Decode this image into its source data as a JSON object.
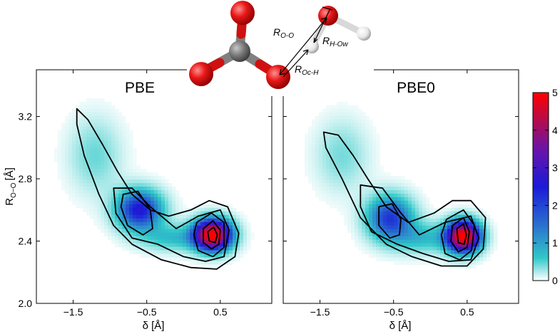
{
  "chart_data": [
    {
      "type": "heatmap",
      "title": "PBE",
      "xlabel": "δ [Å]",
      "ylabel_main": "R",
      "ylabel_sub": "O−O",
      "ylabel_unit": "[Å]",
      "xlim": [
        -2.0,
        1.2
      ],
      "ylim": [
        2.0,
        3.5
      ],
      "xticks": [
        -1.5,
        -0.5,
        0.5
      ],
      "xtick_labels": [
        "−1.5",
        "−0.5",
        "0.5"
      ],
      "yticks": [
        2.0,
        2.4,
        2.8,
        3.2
      ],
      "ytick_labels": [
        "2.0",
        "2.4",
        "2.8",
        "3.2"
      ],
      "density_peaks": [
        {
          "x": 0.4,
          "y": 2.44,
          "sx": 0.18,
          "sy": 0.07,
          "amplitude": 5.0
        },
        {
          "x": -0.6,
          "y": 2.6,
          "sx": 0.22,
          "sy": 0.09,
          "amplitude": 2.6
        },
        {
          "x": -0.15,
          "y": 2.42,
          "sx": 0.3,
          "sy": 0.06,
          "amplitude": 0.9
        },
        {
          "x": -1.2,
          "y": 2.95,
          "sx": 0.25,
          "sy": 0.17,
          "amplitude": 0.6
        }
      ],
      "contours": [
        [
          [
            -1.45,
            3.25
          ],
          [
            -1.3,
            3.18
          ],
          [
            -1.1,
            3.02
          ],
          [
            -0.9,
            2.85
          ],
          [
            -0.7,
            2.7
          ],
          [
            -0.45,
            2.6
          ],
          [
            -0.2,
            2.56
          ],
          [
            0.1,
            2.6
          ],
          [
            0.35,
            2.66
          ],
          [
            0.6,
            2.62
          ],
          [
            0.75,
            2.45
          ],
          [
            0.7,
            2.3
          ],
          [
            0.45,
            2.22
          ],
          [
            0.1,
            2.23
          ],
          [
            -0.3,
            2.28
          ],
          [
            -0.7,
            2.38
          ],
          [
            -0.95,
            2.5
          ],
          [
            -1.15,
            2.7
          ],
          [
            -1.35,
            2.95
          ],
          [
            -1.45,
            3.15
          ]
        ],
        [
          [
            -0.95,
            2.74
          ],
          [
            -0.7,
            2.74
          ],
          [
            -0.45,
            2.62
          ],
          [
            -0.1,
            2.48
          ],
          [
            0.2,
            2.56
          ],
          [
            0.5,
            2.6
          ],
          [
            0.62,
            2.47
          ],
          [
            0.55,
            2.3
          ],
          [
            0.3,
            2.27
          ],
          [
            0.0,
            2.3
          ],
          [
            -0.35,
            2.38
          ],
          [
            -0.7,
            2.42
          ],
          [
            -0.92,
            2.58
          ]
        ],
        [
          [
            -0.82,
            2.7
          ],
          [
            -0.62,
            2.72
          ],
          [
            -0.45,
            2.6
          ],
          [
            -0.42,
            2.48
          ],
          [
            -0.55,
            2.44
          ],
          [
            -0.76,
            2.5
          ],
          [
            -0.85,
            2.62
          ]
        ],
        [
          [
            0.18,
            2.52
          ],
          [
            0.38,
            2.58
          ],
          [
            0.55,
            2.52
          ],
          [
            0.55,
            2.36
          ],
          [
            0.4,
            2.3
          ],
          [
            0.2,
            2.34
          ],
          [
            0.14,
            2.44
          ]
        ],
        [
          [
            0.27,
            2.48
          ],
          [
            0.4,
            2.53
          ],
          [
            0.5,
            2.47
          ],
          [
            0.48,
            2.38
          ],
          [
            0.38,
            2.35
          ],
          [
            0.27,
            2.39
          ]
        ],
        [
          [
            0.33,
            2.46
          ],
          [
            0.41,
            2.49
          ],
          [
            0.46,
            2.44
          ],
          [
            0.43,
            2.39
          ],
          [
            0.35,
            2.4
          ]
        ]
      ]
    },
    {
      "type": "heatmap",
      "title": "PBE0",
      "xlabel": "δ [Å]",
      "xlim": [
        -2.0,
        1.2
      ],
      "ylim": [
        2.0,
        3.5
      ],
      "xticks": [
        -1.5,
        -0.5,
        0.5
      ],
      "xtick_labels": [
        "−1.5",
        "−0.5",
        "0.5"
      ],
      "density_peaks": [
        {
          "x": 0.45,
          "y": 2.43,
          "sx": 0.16,
          "sy": 0.07,
          "amplitude": 5.0
        },
        {
          "x": -0.55,
          "y": 2.55,
          "sx": 0.22,
          "sy": 0.1,
          "amplitude": 2.2
        },
        {
          "x": -0.1,
          "y": 2.42,
          "sx": 0.3,
          "sy": 0.07,
          "amplitude": 0.9
        },
        {
          "x": -1.2,
          "y": 2.95,
          "sx": 0.25,
          "sy": 0.16,
          "amplitude": 0.55
        }
      ],
      "contours": [
        [
          [
            -1.45,
            3.1
          ],
          [
            -1.25,
            3.08
          ],
          [
            -1.05,
            2.95
          ],
          [
            -0.85,
            2.8
          ],
          [
            -0.6,
            2.62
          ],
          [
            -0.3,
            2.52
          ],
          [
            0.05,
            2.58
          ],
          [
            0.3,
            2.66
          ],
          [
            0.55,
            2.66
          ],
          [
            0.75,
            2.55
          ],
          [
            0.72,
            2.35
          ],
          [
            0.5,
            2.24
          ],
          [
            0.15,
            2.24
          ],
          [
            -0.25,
            2.3
          ],
          [
            -0.6,
            2.38
          ],
          [
            -0.95,
            2.55
          ],
          [
            -1.2,
            2.8
          ],
          [
            -1.42,
            3.0
          ]
        ],
        [
          [
            -0.95,
            2.76
          ],
          [
            -0.65,
            2.74
          ],
          [
            -0.4,
            2.58
          ],
          [
            -0.15,
            2.44
          ],
          [
            0.2,
            2.52
          ],
          [
            0.55,
            2.56
          ],
          [
            0.66,
            2.42
          ],
          [
            0.55,
            2.28
          ],
          [
            0.25,
            2.27
          ],
          [
            -0.1,
            2.32
          ],
          [
            -0.45,
            2.38
          ],
          [
            -0.8,
            2.46
          ],
          [
            -0.95,
            2.62
          ]
        ],
        [
          [
            -0.7,
            2.62
          ],
          [
            -0.52,
            2.64
          ],
          [
            -0.4,
            2.54
          ],
          [
            -0.42,
            2.44
          ],
          [
            -0.55,
            2.42
          ],
          [
            -0.7,
            2.5
          ]
        ],
        [
          [
            0.22,
            2.54
          ],
          [
            0.45,
            2.6
          ],
          [
            0.6,
            2.5
          ],
          [
            0.56,
            2.34
          ],
          [
            0.4,
            2.28
          ],
          [
            0.2,
            2.32
          ],
          [
            0.15,
            2.44
          ]
        ],
        [
          [
            0.3,
            2.5
          ],
          [
            0.45,
            2.55
          ],
          [
            0.53,
            2.46
          ],
          [
            0.5,
            2.36
          ],
          [
            0.38,
            2.33
          ],
          [
            0.28,
            2.4
          ]
        ],
        [
          [
            0.36,
            2.48
          ],
          [
            0.45,
            2.51
          ],
          [
            0.49,
            2.44
          ],
          [
            0.46,
            2.38
          ],
          [
            0.38,
            2.39
          ]
        ]
      ]
    }
  ],
  "colorbar": {
    "min": 0,
    "max": 5,
    "ticks": [
      0,
      1,
      2,
      3,
      4,
      5
    ],
    "tick_labels": [
      "0",
      "1",
      "2",
      "3",
      "4",
      "5"
    ],
    "colors": [
      "#ffffff",
      "#30c8c8",
      "#2a6ecf",
      "#1a1ad8",
      "#6a14a8",
      "#c20a3c",
      "#ff0000"
    ]
  },
  "molecule": {
    "label_r_oo_main": "R",
    "label_r_oo_sub": "O-O",
    "label_r_how_main": "R",
    "label_r_how_sub": "H-Ow",
    "label_r_och_main": "R",
    "label_r_och_sub": "Oc-H",
    "atom_colors": {
      "oxygen": "#e01010",
      "carbon": "#7a7a7a",
      "hydrogen": "#f2f2f2"
    }
  }
}
